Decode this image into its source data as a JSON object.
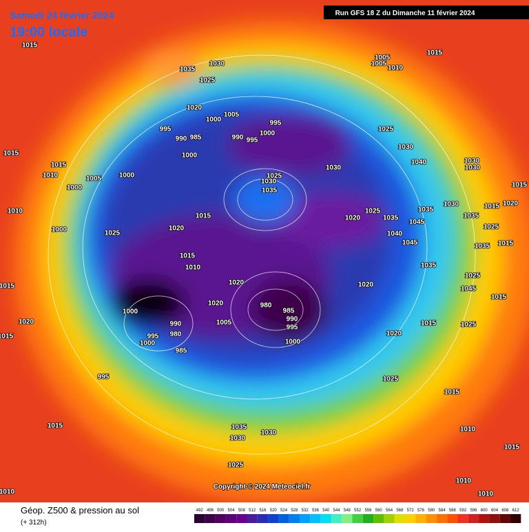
{
  "header": {
    "date": "Samedi 24 février 2024",
    "time": "19:00 locale",
    "run": "Run GFS 18 Z du Dimanche 11 février 2024"
  },
  "copyright": "Copyright © 2024 Meteociel.fr",
  "legend": {
    "title": "Géop. Z500 & pression au sol",
    "lead": "(+ 312h)",
    "ticks": [
      492,
      496,
      500,
      504,
      508,
      512,
      516,
      520,
      524,
      528,
      532,
      536,
      540,
      544,
      548,
      552,
      556,
      560,
      564,
      568,
      572,
      576,
      580,
      584,
      588,
      592,
      596,
      600,
      604,
      608,
      612
    ],
    "colors": [
      "#2b0032",
      "#3d0048",
      "#4f0060",
      "#5e0078",
      "#6a0090",
      "#4a1aa0",
      "#2a2cb8",
      "#1040d0",
      "#0060e0",
      "#0080f0",
      "#00a0ff",
      "#00c0ff",
      "#00e0f0",
      "#40f0c0",
      "#80f080",
      "#40d040",
      "#20b020",
      "#60c000",
      "#a0d000",
      "#e0e000",
      "#ffd000",
      "#ffb000",
      "#ff9000",
      "#ff7000",
      "#ff5000",
      "#f03020",
      "#d02020",
      "#b01010",
      "#901010",
      "#600808",
      "#300000"
    ]
  },
  "pressure_labels": [
    "1015",
    "1035",
    "1030",
    "1025",
    "1005",
    "1005",
    "1010",
    "1015",
    "1020",
    "1005",
    "1000",
    "995",
    "995",
    "990",
    "985",
    "990",
    "995",
    "1000",
    "1025",
    "1030",
    "1000",
    "1040",
    "1030",
    "1030",
    "1015",
    "1015",
    "1010",
    "1005",
    "1000",
    "1000",
    "1030",
    "1025",
    "1030",
    "1035",
    "1015",
    "1010",
    "1025",
    "1035",
    "1035",
    "1030",
    "1015",
    "1020",
    "1020",
    "1015",
    "1035",
    "1045",
    "1025",
    "1000",
    "1025",
    "1020",
    "1040",
    "1045",
    "1035",
    "1015",
    "1015",
    "1010",
    "1035",
    "1025",
    "1015",
    "1020",
    "1020",
    "1045",
    "1020",
    "980",
    "985",
    "1015",
    "1000",
    "990",
    "995",
    "1005",
    "990",
    "1015",
    "1025",
    "1020",
    "980",
    "995",
    "1000",
    "1000",
    "1020",
    "1015",
    "985",
    "995",
    "1025",
    "1015",
    "1015",
    "1035",
    "1030",
    "1030",
    "1010",
    "1015",
    "1025",
    "1010",
    "1010",
    "1010"
  ]
}
